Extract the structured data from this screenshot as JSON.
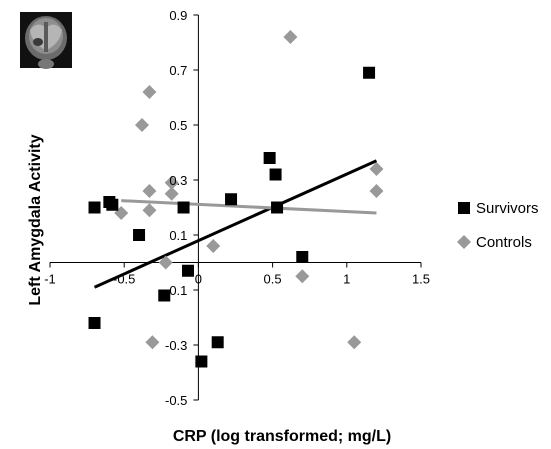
{
  "chart_data": {
    "type": "scatter",
    "xlabel": "CRP (log transformed; mg/L)",
    "ylabel": "Left Amygdala Activity",
    "xlim": [
      -1,
      1.5
    ],
    "ylim": [
      -0.5,
      0.9
    ],
    "x_ticks": [
      "-1",
      "-0.5",
      "0",
      "0.5",
      "1",
      "1.5"
    ],
    "y_ticks": [
      "0.9",
      "0.7",
      "0.5",
      "0.3",
      "0.1",
      "-0.1",
      "-0.3",
      "-0.5"
    ],
    "x_tick_values": [
      -1,
      -0.5,
      0,
      0.5,
      1,
      1.5
    ],
    "y_tick_values": [
      0.9,
      0.7,
      0.5,
      0.3,
      0.1,
      -0.1,
      -0.3,
      -0.5
    ],
    "grid": false,
    "legend_position": "right",
    "series": [
      {
        "name": "Survivors",
        "marker": "square",
        "color": "#000000",
        "points": [
          [
            -0.7,
            0.2
          ],
          [
            -0.6,
            0.22
          ],
          [
            -0.58,
            0.21
          ],
          [
            -0.4,
            0.1
          ],
          [
            -0.7,
            -0.22
          ],
          [
            -0.23,
            -0.12
          ],
          [
            -0.1,
            0.2
          ],
          [
            -0.07,
            -0.03
          ],
          [
            0.22,
            0.23
          ],
          [
            0.48,
            0.38
          ],
          [
            0.52,
            0.32
          ],
          [
            0.53,
            0.2
          ],
          [
            0.7,
            0.02
          ],
          [
            0.13,
            -0.29
          ],
          [
            0.02,
            -0.36
          ],
          [
            1.15,
            0.69
          ]
        ],
        "trend": {
          "x": [
            -0.7,
            1.2
          ],
          "y": [
            -0.09,
            0.37
          ],
          "color": "#000000"
        }
      },
      {
        "name": "Controls",
        "marker": "diamond",
        "color": "#999999",
        "points": [
          [
            -0.52,
            0.18
          ],
          [
            -0.38,
            0.5
          ],
          [
            -0.33,
            0.62
          ],
          [
            -0.33,
            0.19
          ],
          [
            -0.33,
            0.26
          ],
          [
            -0.22,
            0.0
          ],
          [
            -0.18,
            0.25
          ],
          [
            -0.18,
            0.29
          ],
          [
            0.1,
            0.06
          ],
          [
            0.62,
            0.82
          ],
          [
            0.7,
            -0.05
          ],
          [
            1.05,
            -0.29
          ],
          [
            1.2,
            0.34
          ],
          [
            1.2,
            0.26
          ],
          [
            -0.31,
            -0.29
          ]
        ],
        "trend": {
          "x": [
            -0.52,
            1.2
          ],
          "y": [
            0.225,
            0.18
          ],
          "color": "#999999"
        }
      }
    ]
  },
  "thumbnail": {
    "description_icon": "brain-mri-icon"
  }
}
